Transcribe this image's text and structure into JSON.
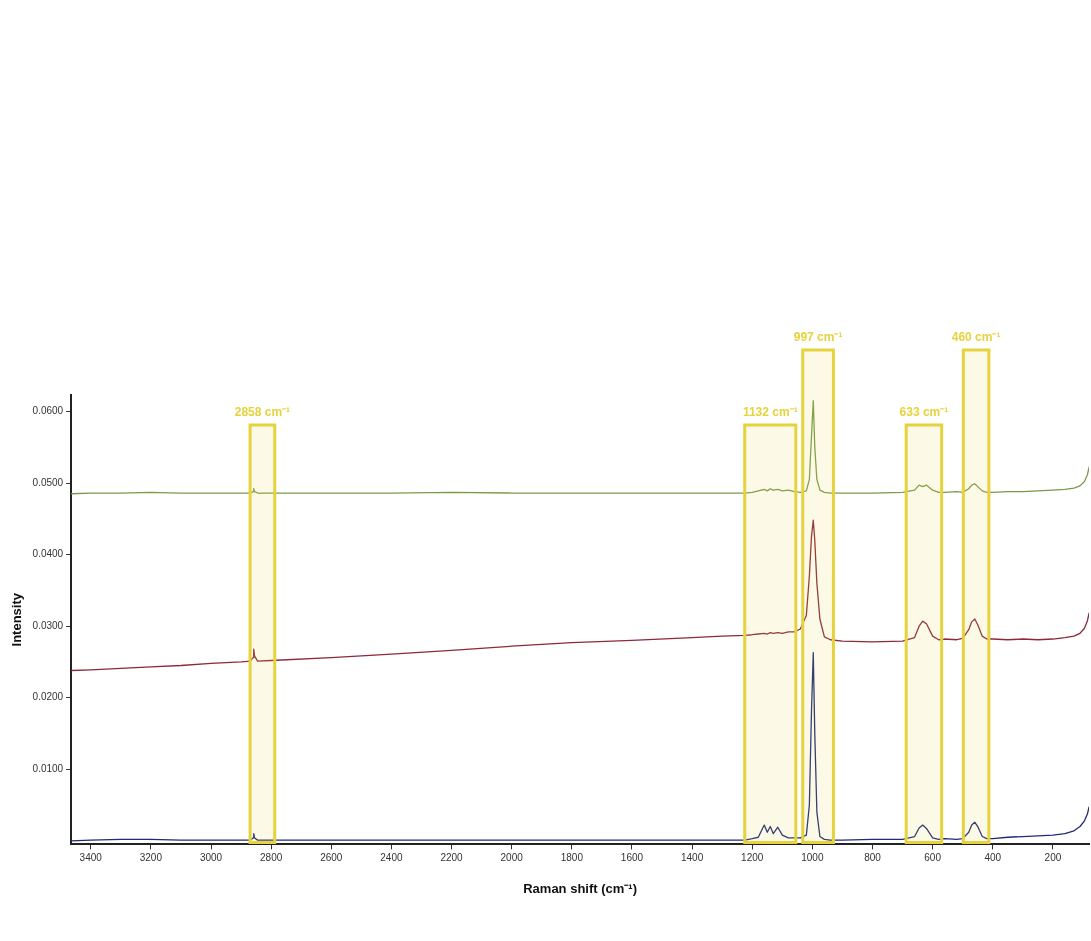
{
  "chart_data": {
    "type": "line",
    "xlabel": "Raman shift (cm⁻¹)",
    "ylabel": "Intensity",
    "x": [
      3465,
      3400,
      3300,
      3200,
      3100,
      3000,
      2900,
      2870,
      2860,
      2858,
      2855,
      2845,
      2800,
      2600,
      2400,
      2200,
      2000,
      1800,
      1600,
      1400,
      1300,
      1225,
      1200,
      1180,
      1160,
      1150,
      1140,
      1130,
      1115,
      1100,
      1080,
      1060,
      1040,
      1020,
      1010,
      1003,
      997,
      992,
      985,
      975,
      960,
      940,
      900,
      800,
      700,
      660,
      645,
      633,
      620,
      600,
      580,
      560,
      520,
      500,
      480,
      470,
      460,
      450,
      435,
      420,
      400,
      350,
      300,
      250,
      200,
      160,
      130,
      110,
      95,
      85,
      80
    ],
    "series": [
      {
        "color": "#7a9a4a",
        "values": [
          0.0485,
          0.0486,
          0.0486,
          0.0487,
          0.0486,
          0.0486,
          0.0486,
          0.0486,
          0.0488,
          0.0492,
          0.0488,
          0.0486,
          0.0486,
          0.0486,
          0.0486,
          0.0487,
          0.0486,
          0.0486,
          0.0486,
          0.0486,
          0.0486,
          0.0486,
          0.0487,
          0.0489,
          0.0491,
          0.0489,
          0.0492,
          0.049,
          0.0491,
          0.0489,
          0.049,
          0.0488,
          0.0487,
          0.0489,
          0.0505,
          0.0565,
          0.0615,
          0.055,
          0.0505,
          0.049,
          0.0487,
          0.0486,
          0.0486,
          0.0486,
          0.0487,
          0.049,
          0.0497,
          0.0495,
          0.0497,
          0.049,
          0.0487,
          0.0487,
          0.0488,
          0.0487,
          0.0492,
          0.0497,
          0.0499,
          0.0495,
          0.0489,
          0.0487,
          0.0487,
          0.0488,
          0.0488,
          0.0489,
          0.049,
          0.0491,
          0.0493,
          0.0496,
          0.0502,
          0.0512,
          0.0522
        ]
      },
      {
        "color": "#8b2a3a",
        "values": [
          0.0238,
          0.0239,
          0.0241,
          0.0243,
          0.0245,
          0.0248,
          0.025,
          0.0251,
          0.0256,
          0.0268,
          0.0258,
          0.0251,
          0.0252,
          0.0256,
          0.0261,
          0.0266,
          0.0272,
          0.0277,
          0.028,
          0.0284,
          0.0286,
          0.0287,
          0.0288,
          0.0289,
          0.029,
          0.0289,
          0.0291,
          0.029,
          0.0291,
          0.029,
          0.0292,
          0.0292,
          0.0296,
          0.0315,
          0.037,
          0.0425,
          0.0448,
          0.042,
          0.036,
          0.031,
          0.0285,
          0.0281,
          0.0279,
          0.0278,
          0.0279,
          0.0284,
          0.03,
          0.0307,
          0.0303,
          0.0286,
          0.0281,
          0.0282,
          0.0281,
          0.0283,
          0.0295,
          0.0306,
          0.031,
          0.0302,
          0.0286,
          0.0282,
          0.0282,
          0.0281,
          0.0282,
          0.0281,
          0.0282,
          0.0284,
          0.0286,
          0.029,
          0.0297,
          0.0308,
          0.0318
        ]
      },
      {
        "color": "#1f2a7a",
        "values": [
          0,
          0.0001,
          0.0002,
          0.0002,
          0.0001,
          0.0001,
          0.0001,
          0.0001,
          0.0004,
          0.001,
          0.0004,
          0.0001,
          0.0001,
          0.0001,
          0.0001,
          0.0001,
          0.0001,
          0.0001,
          0.0001,
          0.0001,
          0.0001,
          0.0001,
          0.0003,
          0.0005,
          0.0022,
          0.0012,
          0.002,
          0.001,
          0.0019,
          0.0008,
          0.0004,
          0.0004,
          0.0004,
          0.0008,
          0.005,
          0.018,
          0.0263,
          0.015,
          0.004,
          0.0006,
          0.0002,
          0.0001,
          0.0001,
          0.0002,
          0.0002,
          0.0006,
          0.0018,
          0.0022,
          0.0017,
          0.0004,
          0.0002,
          0.0003,
          0.0002,
          0.0003,
          0.0012,
          0.0022,
          0.0026,
          0.002,
          0.0006,
          0.0003,
          0.0003,
          0.0005,
          0.0006,
          0.0007,
          0.0008,
          0.001,
          0.0014,
          0.002,
          0.0028,
          0.0038,
          0.0047
        ]
      }
    ],
    "xlim": [
      3465,
      80
    ],
    "xticks": [
      3400,
      3200,
      3000,
      2800,
      2600,
      2400,
      2200,
      2000,
      1800,
      1600,
      1400,
      1200,
      1000,
      800,
      600,
      400,
      200
    ],
    "ylim": [
      -0.0005,
      0.0623
    ],
    "yticks": [
      {
        "value": 0.01,
        "label": "0.0100"
      },
      {
        "value": 0.02,
        "label": "0.0200"
      },
      {
        "value": 0.03,
        "label": "0.0300"
      },
      {
        "value": 0.04,
        "label": "0.0400"
      },
      {
        "value": 0.05,
        "label": "0.0500"
      },
      {
        "value": 0.06,
        "label": "0.0600"
      }
    ],
    "bands": [
      {
        "axis": "x",
        "from": 2870,
        "to": 2788,
        "label": "2858 cm⁻¹",
        "color": "#e6d23c"
      },
      {
        "axis": "x",
        "from": 1225,
        "to": 1055,
        "label": "1132 cm⁻¹",
        "color": "#e6d23c"
      },
      {
        "axis": "x",
        "from": 1032,
        "to": 930,
        "label": "997 cm⁻¹",
        "color": "#e6d23c"
      },
      {
        "axis": "x",
        "from": 688,
        "to": 570,
        "label": "633 cm⁻¹",
        "color": "#e6d23c"
      },
      {
        "axis": "x",
        "from": 498,
        "to": 413,
        "label": "460 cm⁻¹",
        "color": "#e6d23c"
      }
    ],
    "grid": false,
    "legend": false,
    "marker": "none",
    "line_style": "solid"
  }
}
